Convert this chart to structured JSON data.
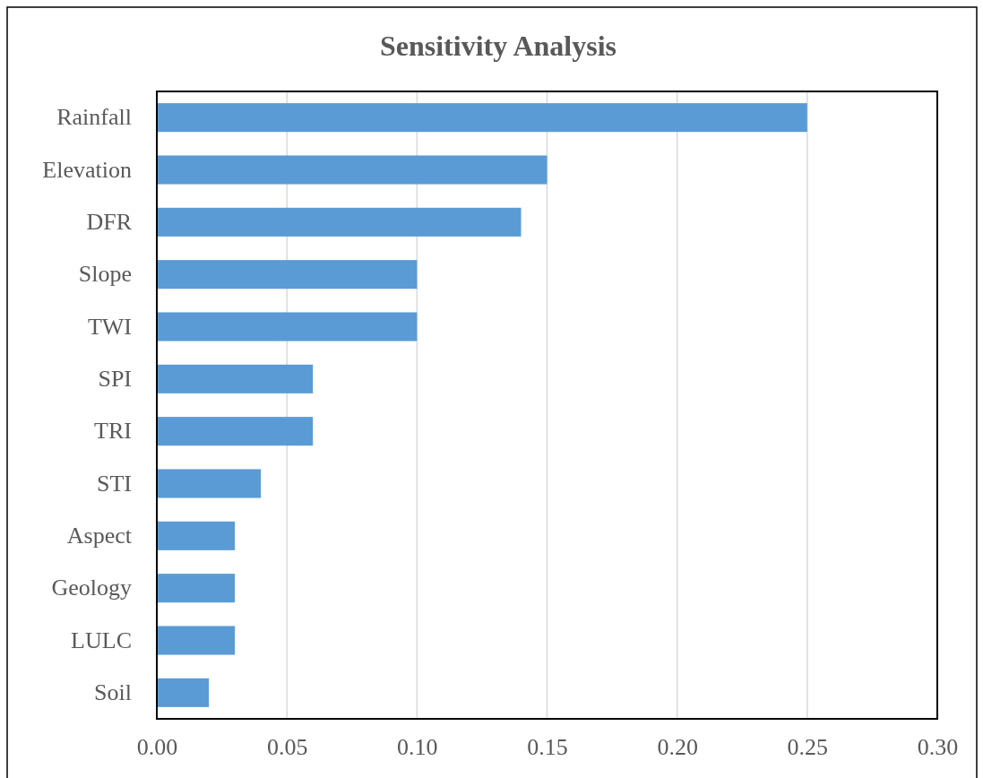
{
  "chart_data": {
    "type": "bar",
    "title": "Sensitivity Analysis",
    "orientation": "horizontal",
    "categories": [
      "Rainfall",
      "Elevation",
      "DFR",
      "Slope",
      "TWI",
      "SPI",
      "TRI",
      "STI",
      "Aspect",
      "Geology",
      "LULC",
      "Soil"
    ],
    "values": [
      0.25,
      0.15,
      0.14,
      0.1,
      0.1,
      0.06,
      0.06,
      0.04,
      0.03,
      0.03,
      0.03,
      0.02
    ],
    "color": "#5b9bd5",
    "xlim": [
      0,
      0.3
    ],
    "xticks": [
      {
        "value": 0,
        "label": "0.00"
      },
      {
        "value": 0.05,
        "label": "0.05"
      },
      {
        "value": 0.1,
        "label": "0.10"
      },
      {
        "value": 0.15,
        "label": "0.15"
      },
      {
        "value": 0.2,
        "label": "0.20"
      },
      {
        "value": 0.25,
        "label": "0.25"
      },
      {
        "value": 0.3,
        "label": "0.30"
      }
    ],
    "grid": "x"
  }
}
